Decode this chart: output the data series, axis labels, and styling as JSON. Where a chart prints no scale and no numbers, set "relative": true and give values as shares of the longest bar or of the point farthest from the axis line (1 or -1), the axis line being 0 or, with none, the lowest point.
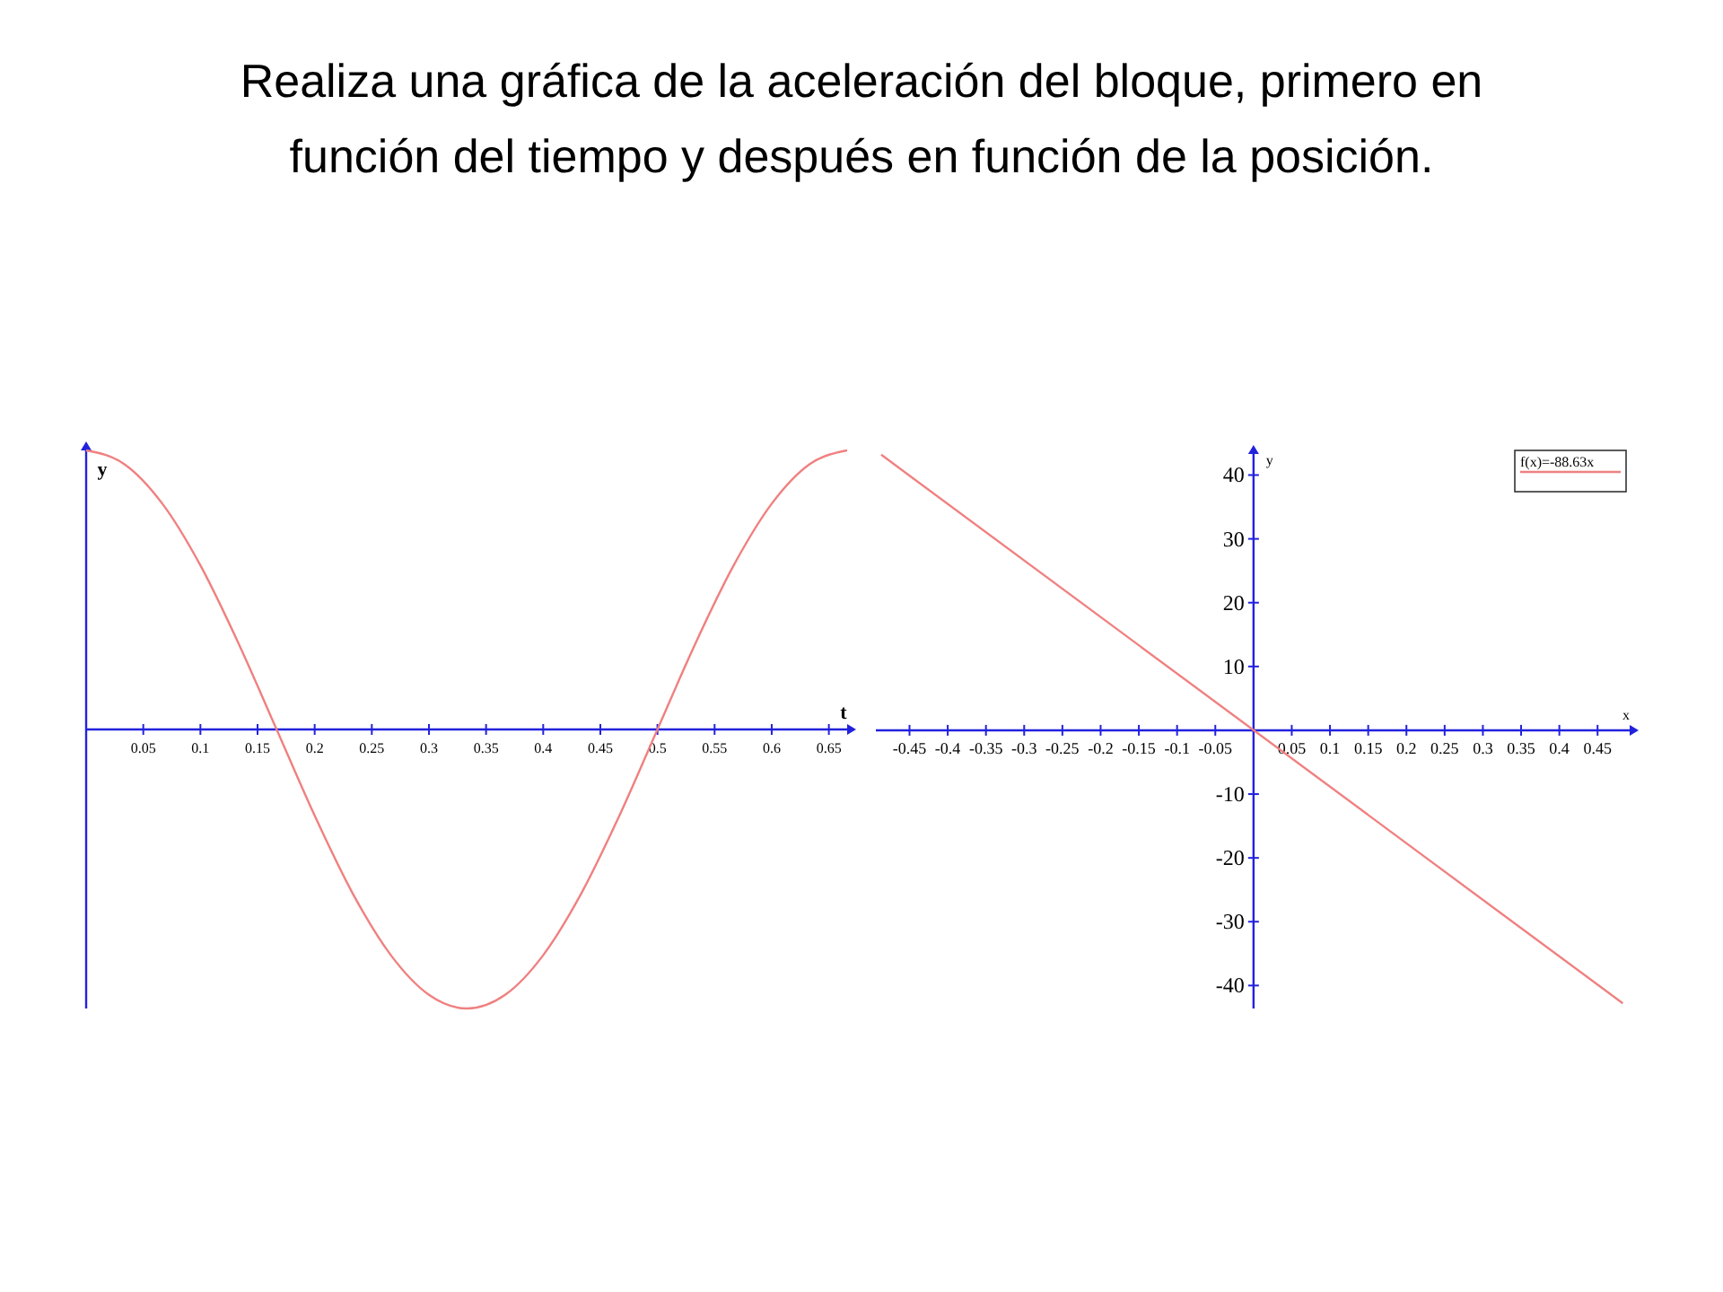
{
  "chart_data": [
    {
      "type": "line",
      "title": "Realiza una gráfica de la aceleración del bloque, primero en función del tiempo y después en función de la posición.",
      "xlabel": "t",
      "ylabel": "y",
      "relative": true,
      "xlim": [
        0,
        0.666
      ],
      "xticks": [
        0.05,
        0.1,
        0.15,
        0.2,
        0.25,
        0.3,
        0.35,
        0.4,
        0.45,
        0.5,
        0.55,
        0.6,
        0.65
      ],
      "x": [
        0,
        0.0333,
        0.0667,
        0.1,
        0.1333,
        0.1667,
        0.2,
        0.2333,
        0.2667,
        0.3,
        0.3333,
        0.3667,
        0.4,
        0.4333,
        0.4667,
        0.5,
        0.5333,
        0.5667,
        0.6,
        0.6333,
        0.666
      ],
      "series": [
        {
          "color": "#f08080",
          "values": [
            1,
            0.951,
            0.809,
            0.588,
            0.309,
            0,
            -0.309,
            -0.588,
            -0.809,
            -0.951,
            -1,
            -0.951,
            -0.809,
            -0.588,
            -0.309,
            0,
            0.309,
            0.588,
            0.809,
            0.951,
            1
          ]
        }
      ]
    },
    {
      "type": "line",
      "xlabel": "x",
      "ylabel": "y",
      "xlim": [
        -0.494,
        0.492
      ],
      "ylim": [
        -43.6,
        43.3
      ],
      "legend": "top right",
      "xticks": [
        -0.45,
        -0.4,
        -0.35,
        -0.3,
        -0.25,
        -0.2,
        -0.15,
        -0.1,
        -0.05,
        0.05,
        0.1,
        0.15,
        0.2,
        0.25,
        0.3,
        0.35,
        0.4,
        0.45
      ],
      "yticks": [
        -40,
        -30,
        -20,
        -10,
        10,
        20,
        30,
        40
      ],
      "x": [
        -0.487,
        0.483
      ],
      "series": [
        {
          "name": "f(x)=-88.63x",
          "color": "#f08080",
          "values": [
            43.2,
            -42.8
          ]
        }
      ]
    }
  ]
}
